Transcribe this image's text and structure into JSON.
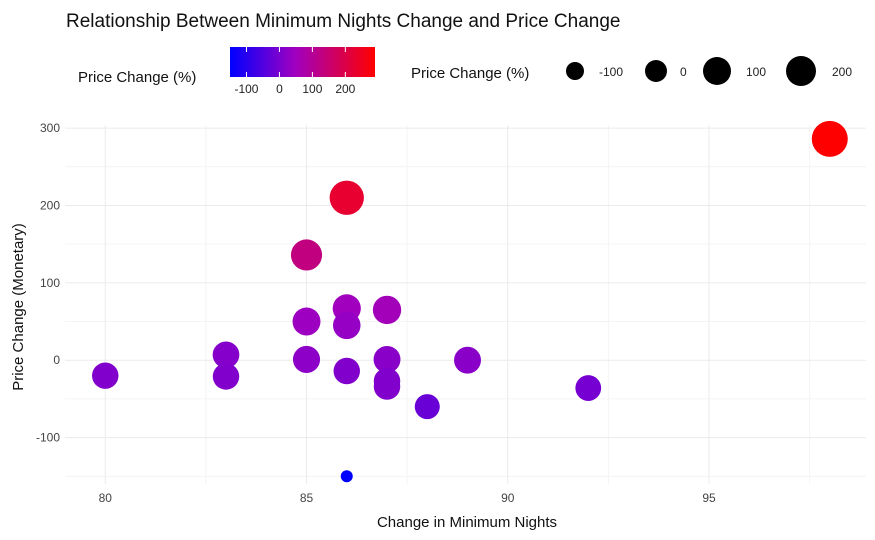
{
  "chart_data": {
    "type": "scatter",
    "title": "Relationship Between Minimum Nights Change and Price Change",
    "xlabel": "Change in Minimum Nights",
    "ylabel": "Price Change (Monetary)",
    "xlim": [
      79,
      98.9
    ],
    "ylim": [
      -160,
      304
    ],
    "x_ticks": [
      80,
      85,
      90,
      95
    ],
    "y_ticks": [
      -100,
      0,
      100,
      200,
      300
    ],
    "grid": true,
    "color_legend": {
      "title": "Price Change (%)",
      "range": [
        -150,
        290
      ],
      "ticks": [
        -100,
        0,
        100,
        200
      ],
      "low_color": "#0000ff",
      "mid_color": "#a000c0",
      "high_color": "#ff0000"
    },
    "size_legend": {
      "title": "Price Change (%)",
      "ticks": [
        -100,
        0,
        100,
        200
      ],
      "color": "#000000"
    },
    "points": [
      {
        "x": 80,
        "y": -20,
        "pct": 10
      },
      {
        "x": 83,
        "y": 7,
        "pct": 15
      },
      {
        "x": 83,
        "y": -21,
        "pct": 10
      },
      {
        "x": 85,
        "y": 136,
        "pct": 130
      },
      {
        "x": 85,
        "y": 50,
        "pct": 45
      },
      {
        "x": 85,
        "y": 1,
        "pct": 25
      },
      {
        "x": 86,
        "y": 210,
        "pct": 230
      },
      {
        "x": 86,
        "y": 67,
        "pct": 50
      },
      {
        "x": 86,
        "y": 45,
        "pct": 35
      },
      {
        "x": 86,
        "y": -14,
        "pct": 10
      },
      {
        "x": 86,
        "y": -150,
        "pct": -150
      },
      {
        "x": 87,
        "y": 65,
        "pct": 55
      },
      {
        "x": 87,
        "y": 1,
        "pct": 20
      },
      {
        "x": 87,
        "y": -27,
        "pct": 10
      },
      {
        "x": 87,
        "y": -34,
        "pct": 10
      },
      {
        "x": 88,
        "y": -60,
        "pct": -20
      },
      {
        "x": 89,
        "y": 0,
        "pct": 20
      },
      {
        "x": 92,
        "y": -36,
        "pct": -5
      },
      {
        "x": 98,
        "y": 286,
        "pct": 290
      }
    ]
  }
}
